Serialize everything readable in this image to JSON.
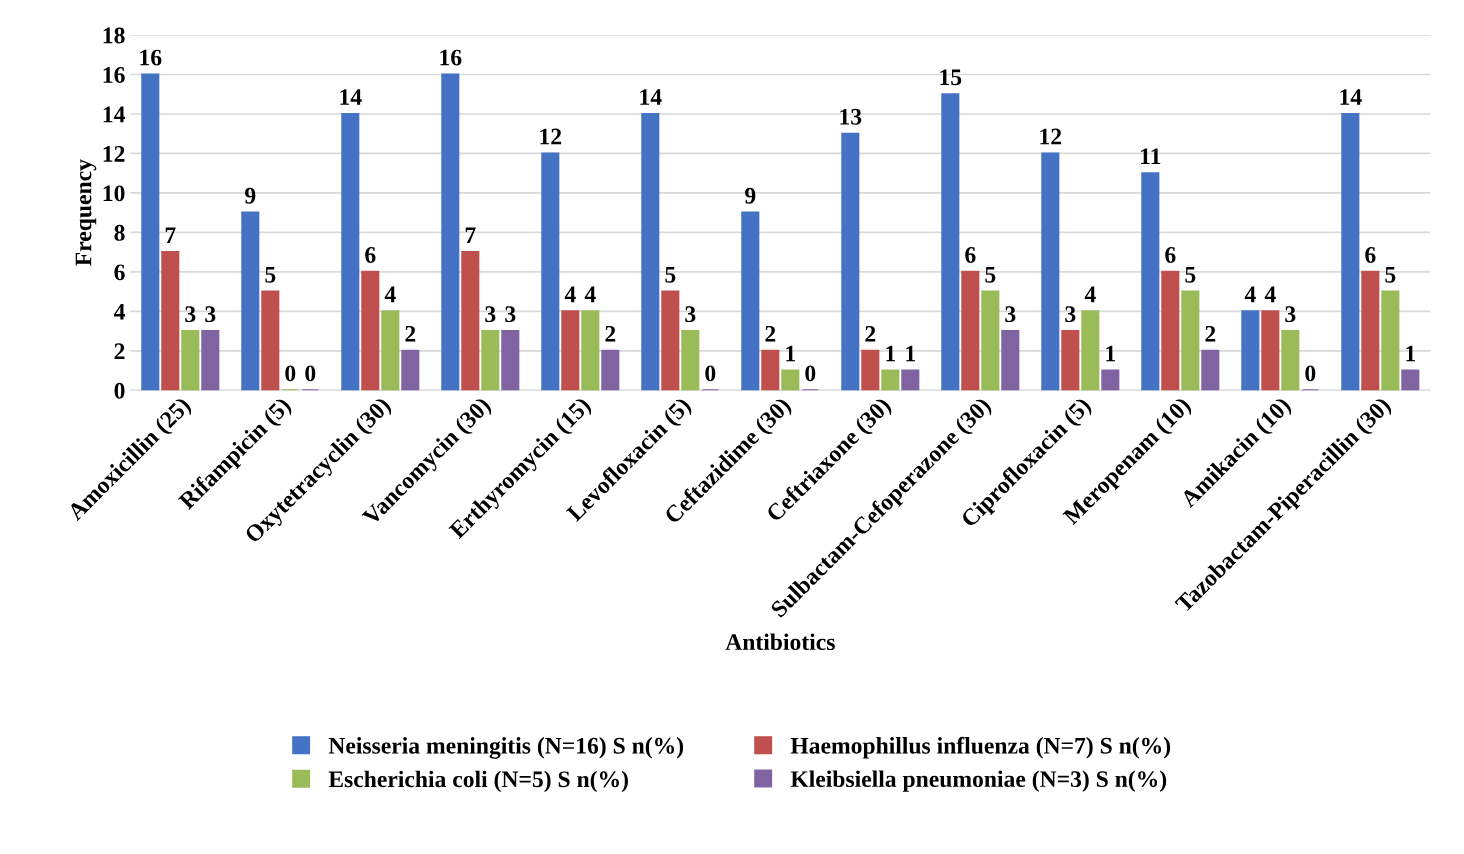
{
  "chart_data": {
    "type": "bar",
    "xlabel": "Antibiotics",
    "ylabel": "Frequency",
    "categories": [
      "Amoxicillin (25)",
      "Rifampicin (5)",
      "Oxytetracyclin (30)",
      "Vancomycin (30)",
      "Erthyromycin (15)",
      "Levofloxacin (5)",
      "Ceftazidime (30)",
      "Ceftriaxone (30)",
      "Sulbactam-Cefoperazone (30)",
      "Ciprofloxacin (5)",
      "Meropenam (10)",
      "Amikacin (10)",
      "Tazobactam-Piperacillin (30)"
    ],
    "series": [
      {
        "name": "Neisseria meningitis (N=16) S n(%)",
        "color": "#4472c4",
        "values": [
          16,
          9,
          14,
          16,
          12,
          14,
          9,
          13,
          15,
          12,
          11,
          4,
          14
        ]
      },
      {
        "name": "Haemophillus influenza (N=7) S n(%)",
        "color": "#c0504d",
        "values": [
          7,
          5,
          6,
          7,
          4,
          5,
          2,
          2,
          6,
          3,
          6,
          4,
          6
        ]
      },
      {
        "name": "Escherichia coli (N=5) S n(%)",
        "color": "#9bbb59",
        "values": [
          3,
          0,
          4,
          3,
          4,
          3,
          1,
          1,
          5,
          4,
          5,
          3,
          5
        ]
      },
      {
        "name": "Kleibsiella pneumoniae (N=3) S n(%)",
        "color": "#8064a2",
        "values": [
          3,
          0,
          2,
          3,
          2,
          0,
          0,
          1,
          3,
          1,
          2,
          0,
          1
        ]
      }
    ],
    "ylim": [
      0,
      18
    ],
    "yticks": [
      0,
      2,
      4,
      6,
      8,
      10,
      12,
      14,
      16,
      18
    ],
    "grid": "y",
    "legend": "bottom",
    "data_labels": true
  }
}
